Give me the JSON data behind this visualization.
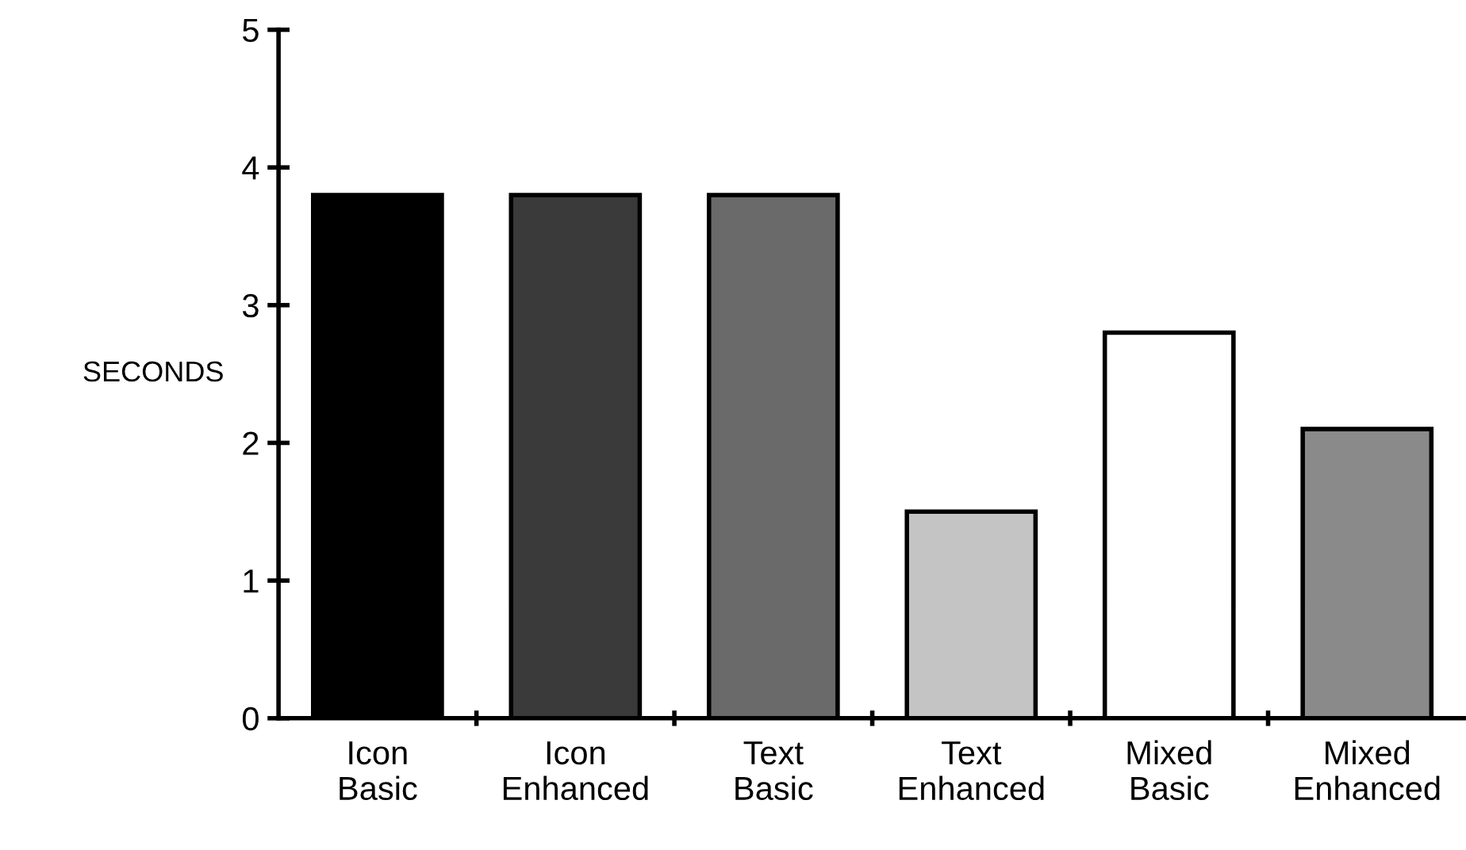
{
  "chart_data": {
    "type": "bar",
    "ylabel": "SECONDS",
    "categories": [
      "Icon\nBasic",
      "Icon\nEnhanced",
      "Text\nBasic",
      "Text\nEnhanced",
      "Mixed\nBasic",
      "Mixed\nEnhanced"
    ],
    "values": [
      3.8,
      3.8,
      3.8,
      1.5,
      2.8,
      2.1
    ],
    "colors": [
      "#000000",
      "#3a3a3a",
      "#6a6a6a",
      "#c4c4c4",
      "#ffffff",
      "#8a8a8a"
    ],
    "ylim": [
      0,
      5
    ],
    "yticks": [
      0,
      1,
      2,
      3,
      4,
      5
    ],
    "grid": false,
    "legend": false
  }
}
